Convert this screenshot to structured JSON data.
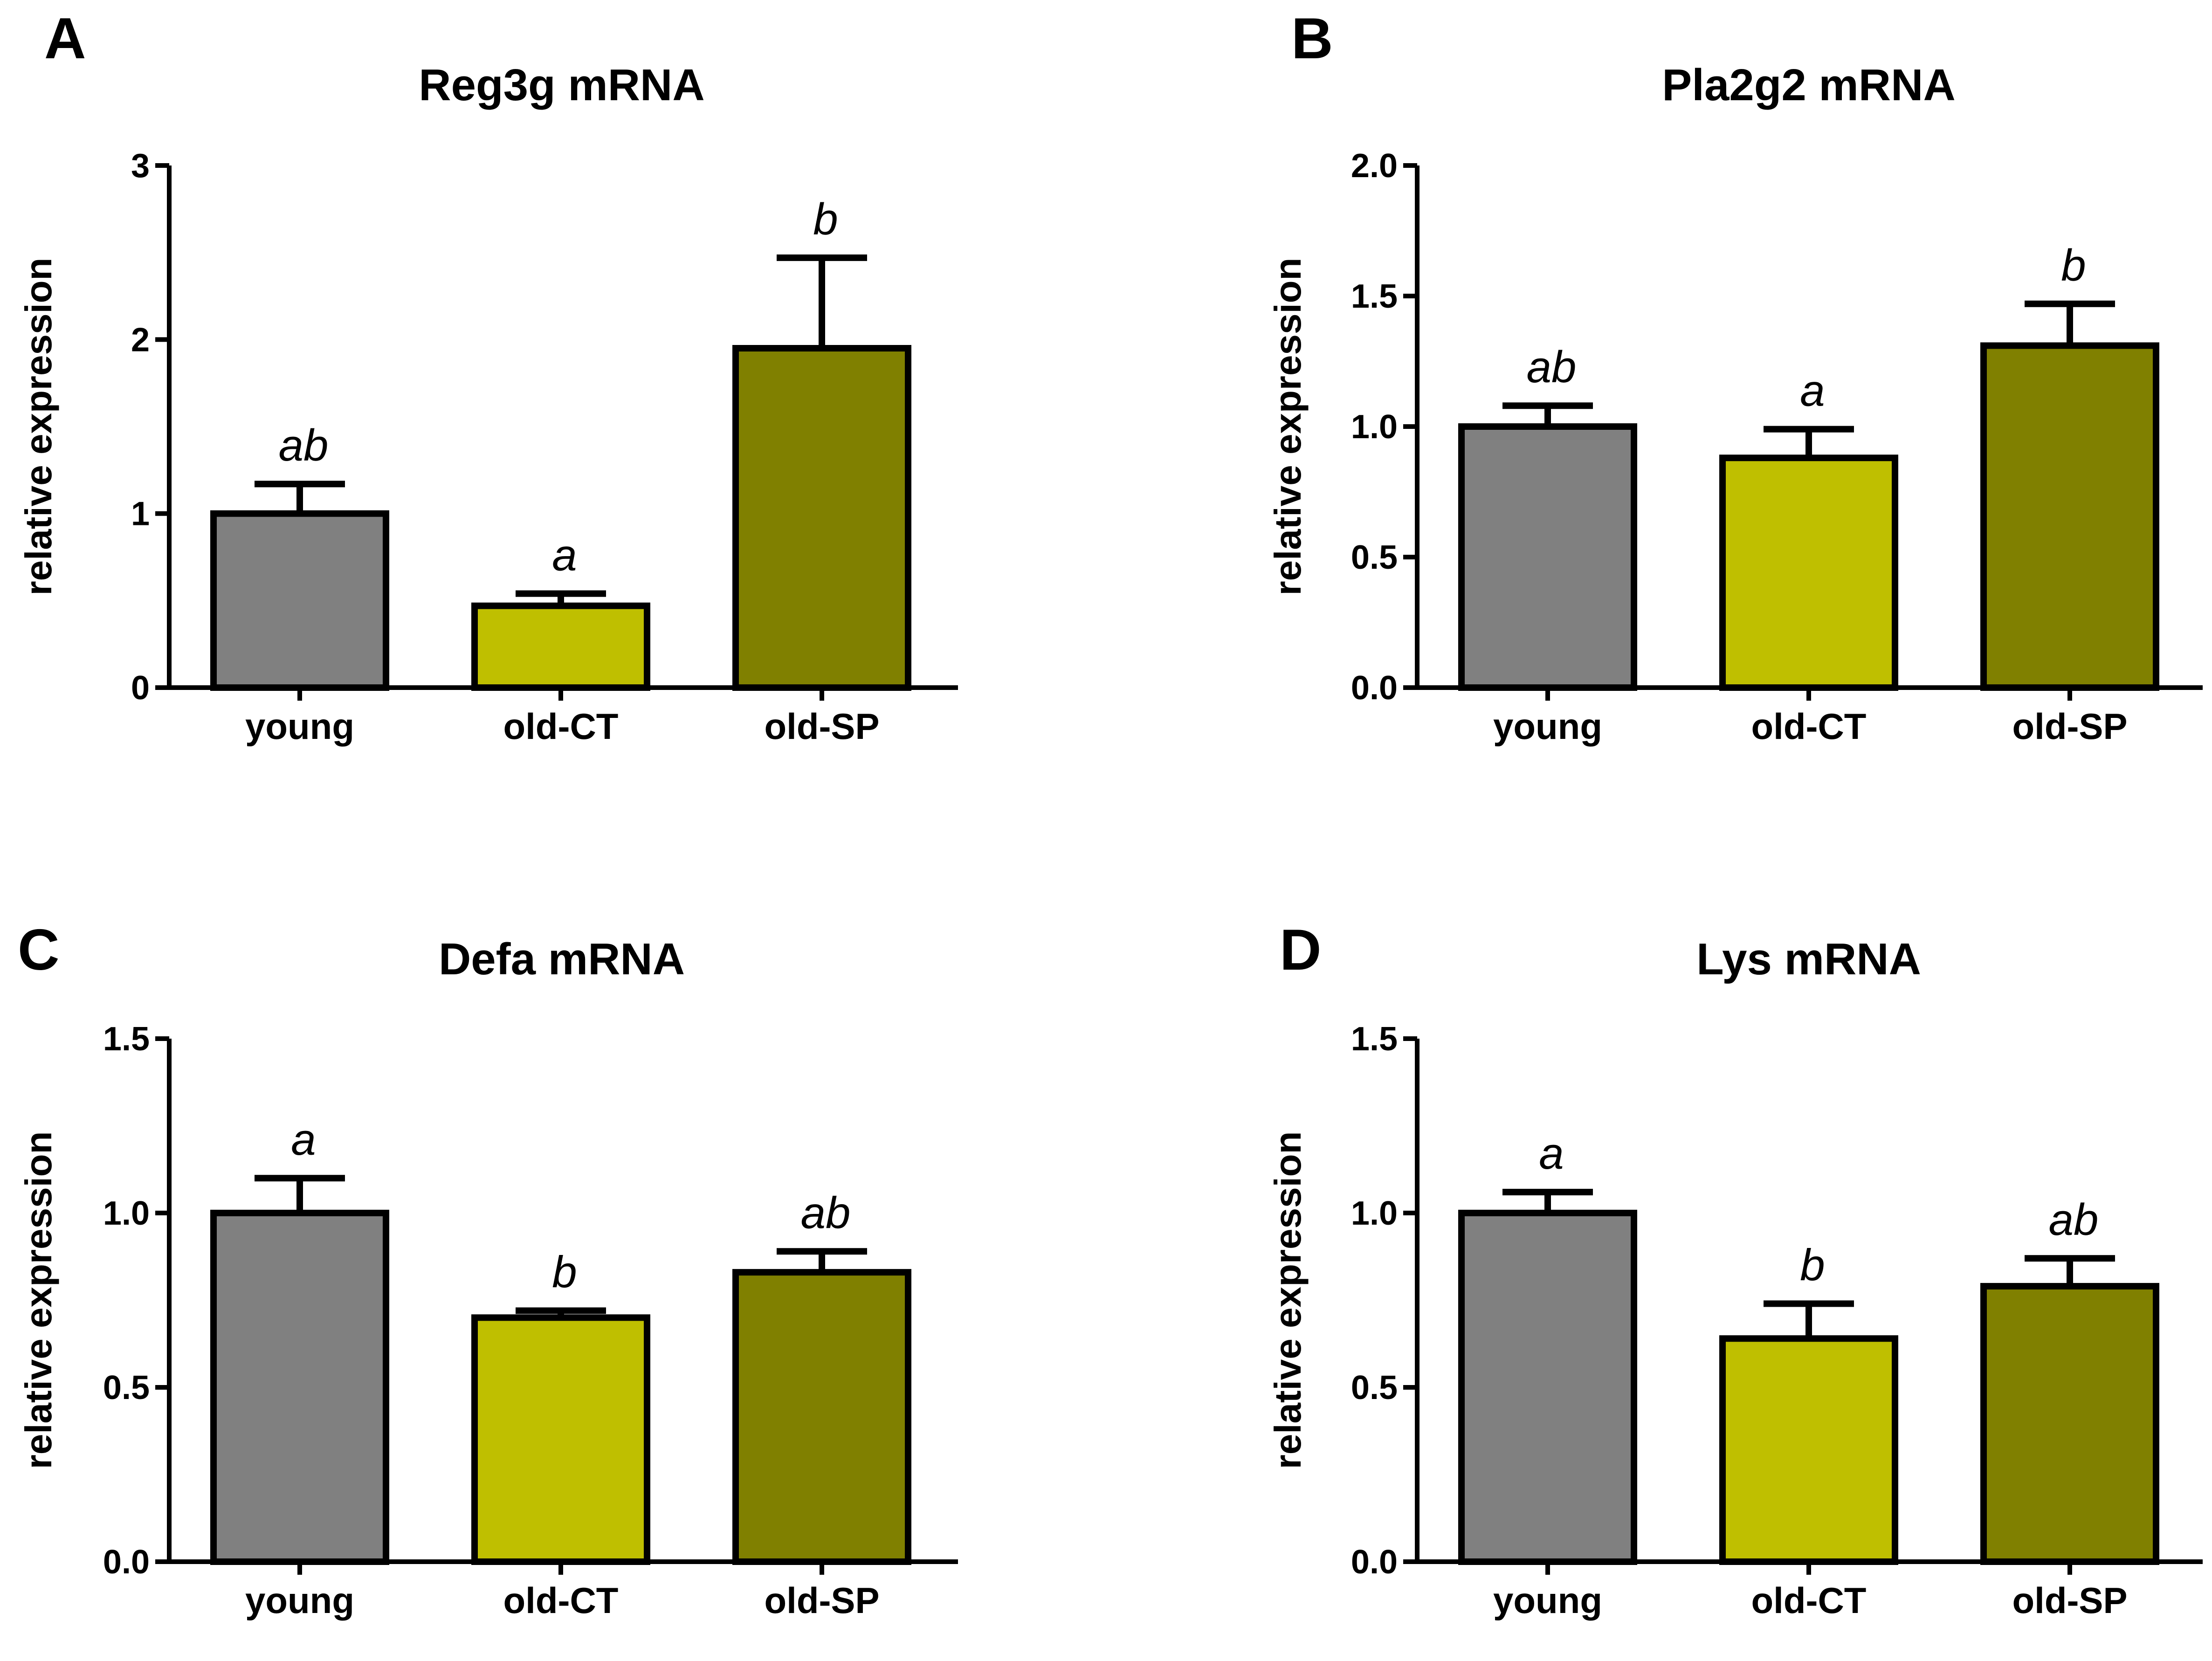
{
  "figure_title": "",
  "chart_data": [
    {
      "type": "bar",
      "panel": "A",
      "title": "Reg3g mRNA",
      "ylabel": "relative expression",
      "xlabel": "",
      "ylim": [
        0,
        3
      ],
      "yticks": [
        0,
        1,
        2,
        3
      ],
      "ytick_labels": [
        "0",
        "1",
        "2",
        "3"
      ],
      "categories": [
        "young",
        "old-CT",
        "old-SP"
      ],
      "values": [
        1.0,
        0.47,
        1.95
      ],
      "errors": [
        0.17,
        0.07,
        0.52
      ],
      "significance": [
        "ab",
        "a",
        "b"
      ],
      "colors": [
        "#808080",
        "#bfbf00",
        "#808000"
      ],
      "grid": false
    },
    {
      "type": "bar",
      "panel": "B",
      "title": "Pla2g2 mRNA",
      "ylabel": "relative expression",
      "xlabel": "",
      "ylim": [
        0,
        2
      ],
      "yticks": [
        0,
        0.5,
        1,
        1.5,
        2
      ],
      "ytick_labels": [
        "0.0",
        "0.5",
        "1.0",
        "1.5",
        "2.0"
      ],
      "categories": [
        "young",
        "old-CT",
        "old-SP"
      ],
      "values": [
        1.0,
        0.88,
        1.31
      ],
      "errors": [
        0.08,
        0.11,
        0.16
      ],
      "significance": [
        "ab",
        "a",
        "b"
      ],
      "colors": [
        "#808080",
        "#bfbf00",
        "#808000"
      ],
      "grid": false
    },
    {
      "type": "bar",
      "panel": "C",
      "title": "Defa mRNA",
      "ylabel": "relative expression",
      "xlabel": "",
      "ylim": [
        0,
        1.5
      ],
      "yticks": [
        0,
        0.5,
        1,
        1.5
      ],
      "ytick_labels": [
        "0.0",
        "0.5",
        "1.0",
        "1.5"
      ],
      "categories": [
        "young",
        "old-CT",
        "old-SP"
      ],
      "values": [
        1.0,
        0.7,
        0.83
      ],
      "errors": [
        0.1,
        0.02,
        0.06
      ],
      "significance": [
        "a",
        "b",
        "ab"
      ],
      "colors": [
        "#808080",
        "#bfbf00",
        "#808000"
      ],
      "grid": false
    },
    {
      "type": "bar",
      "panel": "D",
      "title": "Lys mRNA",
      "ylabel": "relative expression",
      "xlabel": "",
      "ylim": [
        0,
        1.5
      ],
      "yticks": [
        0,
        0.5,
        1,
        1.5
      ],
      "ytick_labels": [
        "0.0",
        "0.5",
        "1.0",
        "1.5"
      ],
      "categories": [
        "young",
        "old-CT",
        "old-SP"
      ],
      "values": [
        1.0,
        0.64,
        0.79
      ],
      "errors": [
        0.06,
        0.1,
        0.08
      ],
      "significance": [
        "a",
        "b",
        "ab"
      ],
      "colors": [
        "#808080",
        "#bfbf00",
        "#808000"
      ],
      "grid": false
    }
  ]
}
